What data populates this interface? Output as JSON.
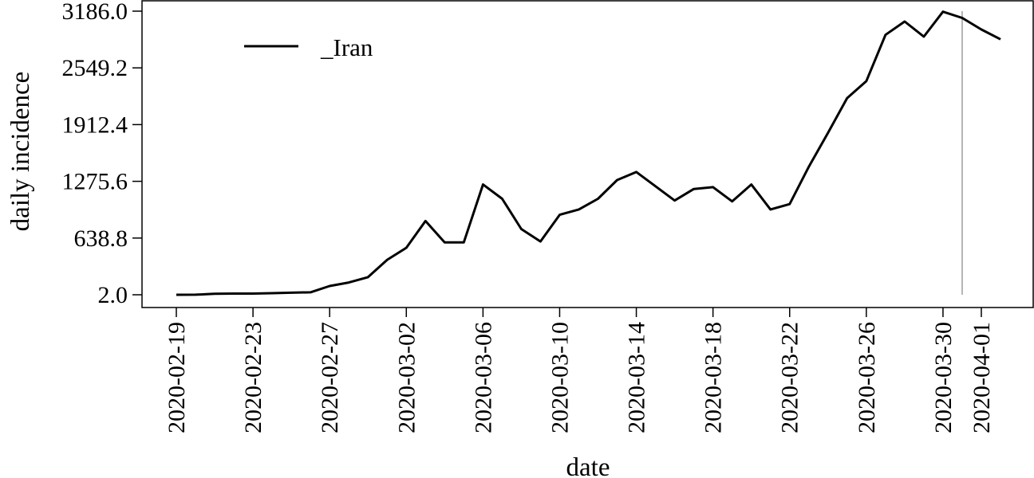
{
  "chart_data": {
    "type": "line",
    "title": "",
    "xlabel": "date",
    "ylabel": "daily incidence",
    "x_start": "2020-02-19",
    "x": [
      "2020-02-19",
      "2020-02-20",
      "2020-02-21",
      "2020-02-22",
      "2020-02-23",
      "2020-02-24",
      "2020-02-25",
      "2020-02-26",
      "2020-02-27",
      "2020-02-28",
      "2020-02-29",
      "2020-03-01",
      "2020-03-02",
      "2020-03-03",
      "2020-03-04",
      "2020-03-05",
      "2020-03-06",
      "2020-03-07",
      "2020-03-08",
      "2020-03-09",
      "2020-03-10",
      "2020-03-11",
      "2020-03-12",
      "2020-03-13",
      "2020-03-14",
      "2020-03-15",
      "2020-03-16",
      "2020-03-17",
      "2020-03-18",
      "2020-03-19",
      "2020-03-20",
      "2020-03-21",
      "2020-03-22",
      "2020-03-23",
      "2020-03-24",
      "2020-03-25",
      "2020-03-26",
      "2020-03-27",
      "2020-03-28",
      "2020-03-29",
      "2020-03-30",
      "2020-03-31",
      "2020-04-01",
      "2020-04-02"
    ],
    "series": [
      {
        "name": "_Iran",
        "color": "#000000",
        "values": [
          2,
          3,
          13,
          15,
          15,
          20,
          25,
          30,
          100,
          140,
          200,
          395,
          530,
          830,
          590,
          590,
          1240,
          1080,
          740,
          600,
          900,
          960,
          1080,
          1290,
          1380,
          1220,
          1060,
          1190,
          1210,
          1050,
          1240,
          960,
          1020,
          1440,
          1820,
          2210,
          2400,
          2920,
          3070,
          2900,
          3180,
          3110,
          2980,
          2870
        ]
      }
    ],
    "y_ticks": [
      "2.0",
      "638.8",
      "1275.6",
      "1912.4",
      "2549.2",
      "3186.0"
    ],
    "y_tick_values": [
      2.0,
      638.8,
      1275.6,
      1912.4,
      2549.2,
      3186.0
    ],
    "ylim": [
      2.0,
      3186.0
    ],
    "x_ticks": [
      "2020-02-19",
      "2020-02-23",
      "2020-02-27",
      "2020-03-02",
      "2020-03-06",
      "2020-03-10",
      "2020-03-14",
      "2020-03-18",
      "2020-03-22",
      "2020-03-26",
      "2020-03-30",
      "2020-04-01"
    ],
    "vline_x": "2020-03-31",
    "vline_color": "#b4b4b4",
    "legend_position": "top-left",
    "grid": false
  }
}
